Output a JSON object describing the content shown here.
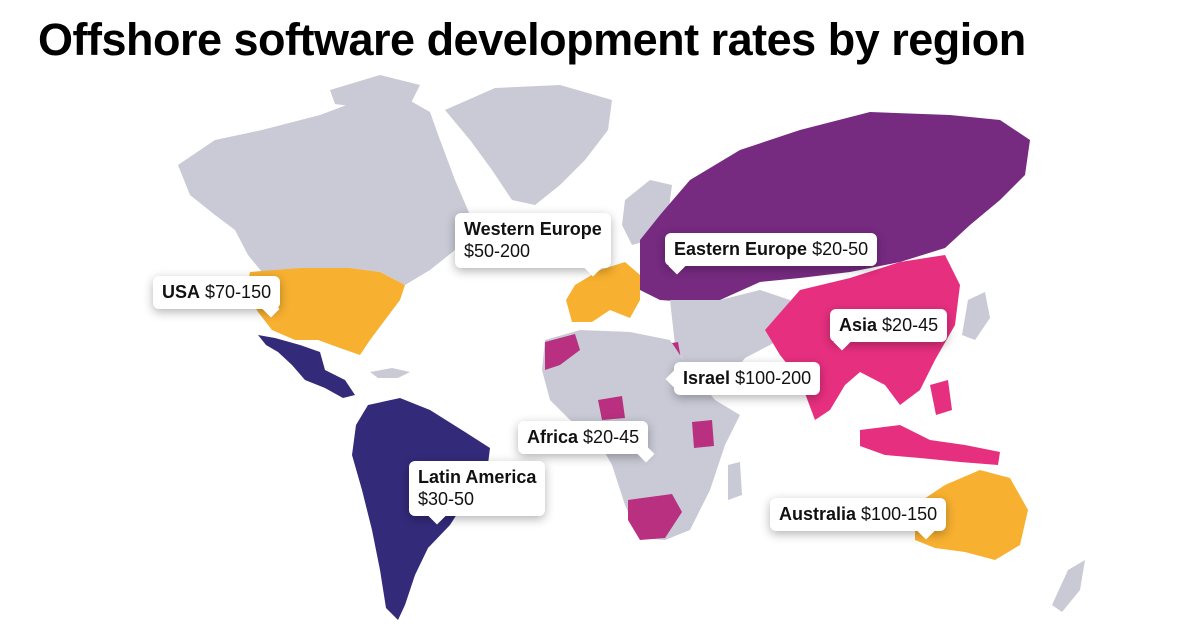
{
  "title": "Offshore software development rates by region",
  "colors": {
    "land": "#c9cad6",
    "usa": "#f7b030",
    "western_europe": "#f7b030",
    "australia": "#f7b030",
    "latin_america": "#332a7a",
    "eastern_europe": "#762a80",
    "asia": "#e62f7f",
    "africa": "#b8307f",
    "israel": "#b8307f"
  },
  "regions": {
    "usa": {
      "name": "USA",
      "rate": "$70-150"
    },
    "western_europe": {
      "name": "Western Europe",
      "rate": "$50-200"
    },
    "eastern_europe": {
      "name": "Eastern Europe",
      "rate": "$20-50"
    },
    "asia": {
      "name": "Asia",
      "rate": "$20-45"
    },
    "israel": {
      "name": "Israel",
      "rate": "$100-200"
    },
    "africa": {
      "name": "Africa",
      "rate": "$20-45"
    },
    "latin_america": {
      "name": "Latin America",
      "rate": "$30-50"
    },
    "australia": {
      "name": "Australia",
      "rate": "$100-150"
    }
  }
}
